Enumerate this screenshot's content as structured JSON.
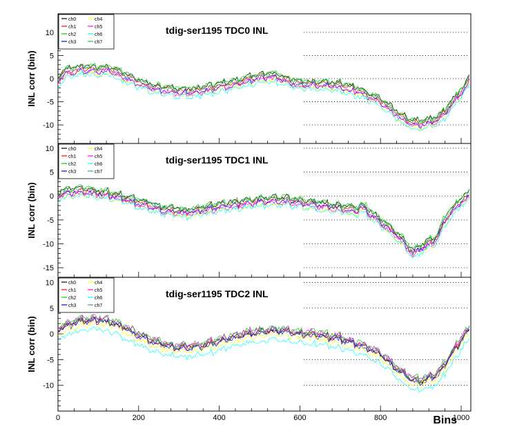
{
  "figure": {
    "xlabel": "Bins"
  },
  "chart_data": [
    {
      "type": "line",
      "title": "tdig-ser1195 TDC0 INL",
      "ylabel": "INL corr (bin)",
      "xlim": [
        0,
        1024
      ],
      "ylim": [
        -14,
        14
      ],
      "yticks": [
        -10,
        -5,
        0,
        5,
        10
      ],
      "xticks": [
        0,
        200,
        400,
        600,
        800,
        1000
      ],
      "grid": "horizontal dotted, right part",
      "legend": "top-left",
      "series": [
        {
          "name": "ch0",
          "color": "#000000"
        },
        {
          "name": "ch1",
          "color": "#ff0000"
        },
        {
          "name": "ch2",
          "color": "#00cc00"
        },
        {
          "name": "ch3",
          "color": "#0000ff"
        },
        {
          "name": "ch4",
          "color": "#ffff00"
        },
        {
          "name": "ch5",
          "color": "#ff00ff"
        },
        {
          "name": "ch6",
          "color": "#00ffff"
        },
        {
          "name": "ch7",
          "color": "#33aa55"
        }
      ],
      "profile": {
        "x": [
          0,
          20,
          60,
          100,
          130,
          160,
          200,
          240,
          300,
          340,
          380,
          440,
          500,
          540,
          600,
          640,
          700,
          750,
          800,
          850,
          880,
          900,
          940,
          960,
          990,
          1010,
          1023
        ],
        "y": [
          -0.5,
          1.2,
          2.0,
          1.6,
          1.8,
          0.5,
          -1.0,
          -2.2,
          -3.0,
          -3.0,
          -2.2,
          -1.2,
          0.2,
          0.3,
          -1.5,
          -1.3,
          -1.8,
          -3.0,
          -5.0,
          -8.5,
          -9.8,
          -10.0,
          -9.0,
          -7.5,
          -4.0,
          -2.0,
          0.0
        ]
      },
      "offsets": [
        0.5,
        0.0,
        0.6,
        -0.5,
        -0.9,
        -0.6,
        -1.3,
        0.2
      ]
    },
    {
      "type": "line",
      "title": "tdig-ser1195 TDC1 INL",
      "ylabel": "INL corr (bin)",
      "xlim": [
        0,
        1024
      ],
      "ylim": [
        -17,
        11
      ],
      "yticks": [
        -15,
        -10,
        -5,
        0,
        5,
        10
      ],
      "xticks": [
        0,
        200,
        400,
        600,
        800,
        1000
      ],
      "grid": "horizontal dotted, right part",
      "legend": "top-left",
      "series": [
        {
          "name": "ch0",
          "color": "#000000"
        },
        {
          "name": "ch1",
          "color": "#ff0000"
        },
        {
          "name": "ch2",
          "color": "#00cc00"
        },
        {
          "name": "ch3",
          "color": "#0000ff"
        },
        {
          "name": "ch4",
          "color": "#ffff00"
        },
        {
          "name": "ch5",
          "color": "#ff00ff"
        },
        {
          "name": "ch6",
          "color": "#00ffff"
        },
        {
          "name": "ch7",
          "color": "#33aa55"
        }
      ],
      "profile": {
        "x": [
          0,
          20,
          60,
          100,
          140,
          200,
          260,
          320,
          360,
          420,
          500,
          560,
          600,
          640,
          700,
          745,
          750,
          800,
          850,
          880,
          900,
          940,
          960,
          990,
          1010,
          1023
        ],
        "y": [
          0.0,
          0.6,
          1.0,
          0.5,
          0.0,
          -1.5,
          -3.0,
          -3.6,
          -3.0,
          -2.0,
          -1.2,
          -1.0,
          -1.5,
          -2.0,
          -2.6,
          -3.2,
          -2.0,
          -5.5,
          -9.0,
          -12.0,
          -11.0,
          -9.0,
          -5.0,
          -2.0,
          -0.5,
          0.0
        ]
      },
      "offsets": [
        0.4,
        -0.2,
        0.5,
        -0.4,
        -1.0,
        -0.7,
        -1.2,
        0.2
      ]
    },
    {
      "type": "line",
      "title": "tdig-ser1195 TDC2 INL",
      "ylabel": "INL corr (bin)",
      "xlim": [
        0,
        1024
      ],
      "ylim": [
        -15,
        11
      ],
      "yticks": [
        -10,
        -5,
        0,
        5,
        10
      ],
      "xticks": [
        0,
        200,
        400,
        600,
        800,
        1000
      ],
      "grid": "horizontal dotted, right part",
      "legend": "top-left",
      "series": [
        {
          "name": "ch0",
          "color": "#000000"
        },
        {
          "name": "ch1",
          "color": "#ff0000"
        },
        {
          "name": "ch2",
          "color": "#00cc00"
        },
        {
          "name": "ch3",
          "color": "#0000ff"
        },
        {
          "name": "ch4",
          "color": "#ffff00"
        },
        {
          "name": "ch5",
          "color": "#ff00ff"
        },
        {
          "name": "ch6",
          "color": "#00ffff"
        },
        {
          "name": "ch7",
          "color": "#33aa55"
        }
      ],
      "profile": {
        "x": [
          0,
          20,
          60,
          100,
          140,
          200,
          250,
          300,
          350,
          400,
          460,
          520,
          560,
          600,
          640,
          700,
          760,
          800,
          850,
          880,
          900,
          940,
          960,
          990,
          1010,
          1023
        ],
        "y": [
          0.2,
          1.0,
          2.0,
          2.2,
          1.5,
          -0.8,
          -2.5,
          -3.3,
          -3.0,
          -2.0,
          -0.7,
          0.0,
          0.0,
          -0.6,
          -0.7,
          -1.5,
          -3.0,
          -4.5,
          -8.0,
          -9.5,
          -9.8,
          -8.5,
          -6.5,
          -3.0,
          -0.5,
          0.0
        ]
      },
      "offsets": [
        0.3,
        0.2,
        0.8,
        0.0,
        -0.6,
        0.7,
        -1.6,
        0.4
      ]
    }
  ]
}
